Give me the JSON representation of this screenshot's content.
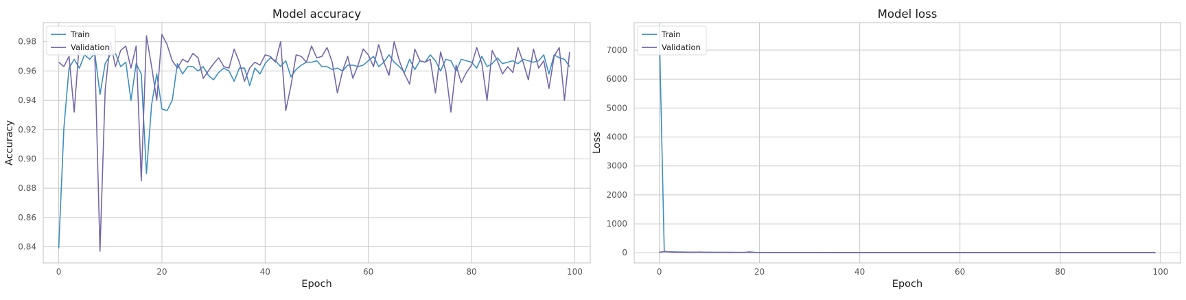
{
  "colors": {
    "train": "#3a8fc0",
    "validation": "#7566a8",
    "grid": "#c8c8c8",
    "frame": "#c0c0c0",
    "background": "#ffffff"
  },
  "chart_data": [
    {
      "type": "line",
      "title": "Model accuracy",
      "xlabel": "Epoch",
      "ylabel": "Accuracy",
      "xlim": [
        -3,
        103
      ],
      "ylim": [
        0.829,
        0.993
      ],
      "xticks": [
        0,
        20,
        40,
        60,
        80,
        100
      ],
      "xtick_labels": [
        "0",
        "20",
        "40",
        "60",
        "80",
        "100"
      ],
      "yticks": [
        0.84,
        0.86,
        0.88,
        0.9,
        0.92,
        0.94,
        0.96,
        0.98
      ],
      "ytick_labels": [
        "0.84",
        "0.86",
        "0.88",
        "0.90",
        "0.92",
        "0.94",
        "0.96",
        "0.98"
      ],
      "grid": true,
      "legend_position": "top-left",
      "series": [
        {
          "name": "Train",
          "color": "#3a8fc0",
          "x_start": 0,
          "values": [
            0.839,
            0.921,
            0.962,
            0.968,
            0.962,
            0.971,
            0.968,
            0.972,
            0.944,
            0.965,
            0.971,
            0.972,
            0.963,
            0.966,
            0.94,
            0.965,
            0.958,
            0.89,
            0.937,
            0.958,
            0.934,
            0.933,
            0.94,
            0.965,
            0.958,
            0.963,
            0.963,
            0.96,
            0.963,
            0.957,
            0.954,
            0.959,
            0.962,
            0.96,
            0.953,
            0.962,
            0.962,
            0.95,
            0.962,
            0.958,
            0.965,
            0.969,
            0.967,
            0.963,
            0.967,
            0.956,
            0.961,
            0.964,
            0.966,
            0.966,
            0.967,
            0.963,
            0.963,
            0.961,
            0.962,
            0.96,
            0.964,
            0.964,
            0.963,
            0.964,
            0.967,
            0.97,
            0.963,
            0.966,
            0.971,
            0.966,
            0.963,
            0.959,
            0.968,
            0.961,
            0.967,
            0.966,
            0.971,
            0.967,
            0.96,
            0.968,
            0.967,
            0.96,
            0.968,
            0.967,
            0.966,
            0.962,
            0.97,
            0.963,
            0.965,
            0.969,
            0.965,
            0.966,
            0.967,
            0.965,
            0.968,
            0.967,
            0.966,
            0.967,
            0.971,
            0.958,
            0.971,
            0.969,
            0.968,
            0.963
          ]
        },
        {
          "name": "Validation",
          "color": "#7566a8",
          "x_start": 0,
          "values": [
            0.966,
            0.963,
            0.97,
            0.932,
            0.979,
            0.981,
            0.985,
            0.97,
            0.837,
            0.947,
            0.98,
            0.963,
            0.974,
            0.977,
            0.962,
            0.977,
            0.885,
            0.984,
            0.963,
            0.94,
            0.985,
            0.978,
            0.967,
            0.962,
            0.968,
            0.966,
            0.972,
            0.969,
            0.955,
            0.96,
            0.965,
            0.969,
            0.963,
            0.962,
            0.975,
            0.966,
            0.953,
            0.962,
            0.966,
            0.964,
            0.971,
            0.97,
            0.966,
            0.98,
            0.933,
            0.95,
            0.971,
            0.97,
            0.966,
            0.977,
            0.969,
            0.97,
            0.976,
            0.966,
            0.945,
            0.96,
            0.97,
            0.955,
            0.964,
            0.975,
            0.971,
            0.963,
            0.978,
            0.966,
            0.957,
            0.98,
            0.967,
            0.958,
            0.951,
            0.975,
            0.967,
            0.966,
            0.968,
            0.945,
            0.973,
            0.96,
            0.932,
            0.964,
            0.952,
            0.959,
            0.964,
            0.976,
            0.965,
            0.94,
            0.974,
            0.967,
            0.958,
            0.963,
            0.959,
            0.976,
            0.966,
            0.954,
            0.975,
            0.962,
            0.967,
            0.948,
            0.97,
            0.976,
            0.94,
            0.973
          ]
        }
      ]
    },
    {
      "type": "line",
      "title": "Model loss",
      "xlabel": "Epoch",
      "ylabel": "Loss",
      "xlim": [
        -5,
        104
      ],
      "ylim": [
        -350,
        7950
      ],
      "xticks": [
        0,
        20,
        40,
        60,
        80,
        100
      ],
      "xtick_labels": [
        "0",
        "20",
        "40",
        "60",
        "80",
        "100"
      ],
      "yticks": [
        0,
        1000,
        2000,
        3000,
        4000,
        5000,
        6000,
        7000
      ],
      "ytick_labels": [
        "0",
        "1000",
        "2000",
        "3000",
        "4000",
        "5000",
        "6000",
        "7000"
      ],
      "grid": true,
      "legend_position": "top-left",
      "series": [
        {
          "name": "Train",
          "color": "#3a8fc0",
          "x_start": 0,
          "values": [
            7850,
            50,
            35,
            30,
            28,
            25,
            22,
            20,
            22,
            20,
            18,
            17,
            16,
            15,
            15,
            14,
            14,
            13,
            20,
            14,
            12,
            12,
            11,
            11,
            10,
            10,
            10,
            10,
            9,
            9,
            9,
            9,
            9,
            9,
            8,
            8,
            8,
            8,
            8,
            8,
            8,
            8,
            8,
            8,
            8,
            8,
            8,
            8,
            8,
            8,
            8,
            8,
            8,
            8,
            8,
            8,
            8,
            8,
            8,
            8,
            8,
            8,
            8,
            8,
            8,
            8,
            8,
            8,
            8,
            8,
            8,
            8,
            8,
            8,
            8,
            8,
            8,
            8,
            8,
            8,
            8,
            8,
            8,
            8,
            8,
            8,
            8,
            8,
            8,
            8,
            8,
            8,
            8,
            8,
            8,
            8,
            8,
            8,
            8,
            8
          ]
        },
        {
          "name": "Validation",
          "color": "#7566a8",
          "x_start": 0,
          "values": [
            20,
            40,
            30,
            22,
            20,
            18,
            20,
            18,
            25,
            16,
            15,
            14,
            14,
            13,
            13,
            12,
            12,
            12,
            30,
            12,
            11,
            11,
            10,
            10,
            10,
            10,
            10,
            9,
            9,
            9,
            9,
            9,
            9,
            9,
            9,
            9,
            9,
            9,
            9,
            9,
            9,
            9,
            9,
            9,
            9,
            9,
            9,
            9,
            9,
            9,
            9,
            9,
            9,
            9,
            9,
            9,
            9,
            9,
            9,
            9,
            9,
            9,
            9,
            9,
            9,
            9,
            9,
            9,
            9,
            9,
            9,
            9,
            9,
            9,
            9,
            9,
            9,
            9,
            9,
            9,
            9,
            9,
            9,
            9,
            9,
            9,
            9,
            9,
            9,
            9,
            9,
            9,
            9,
            9,
            9,
            9,
            9,
            9,
            9,
            9
          ]
        }
      ]
    }
  ]
}
